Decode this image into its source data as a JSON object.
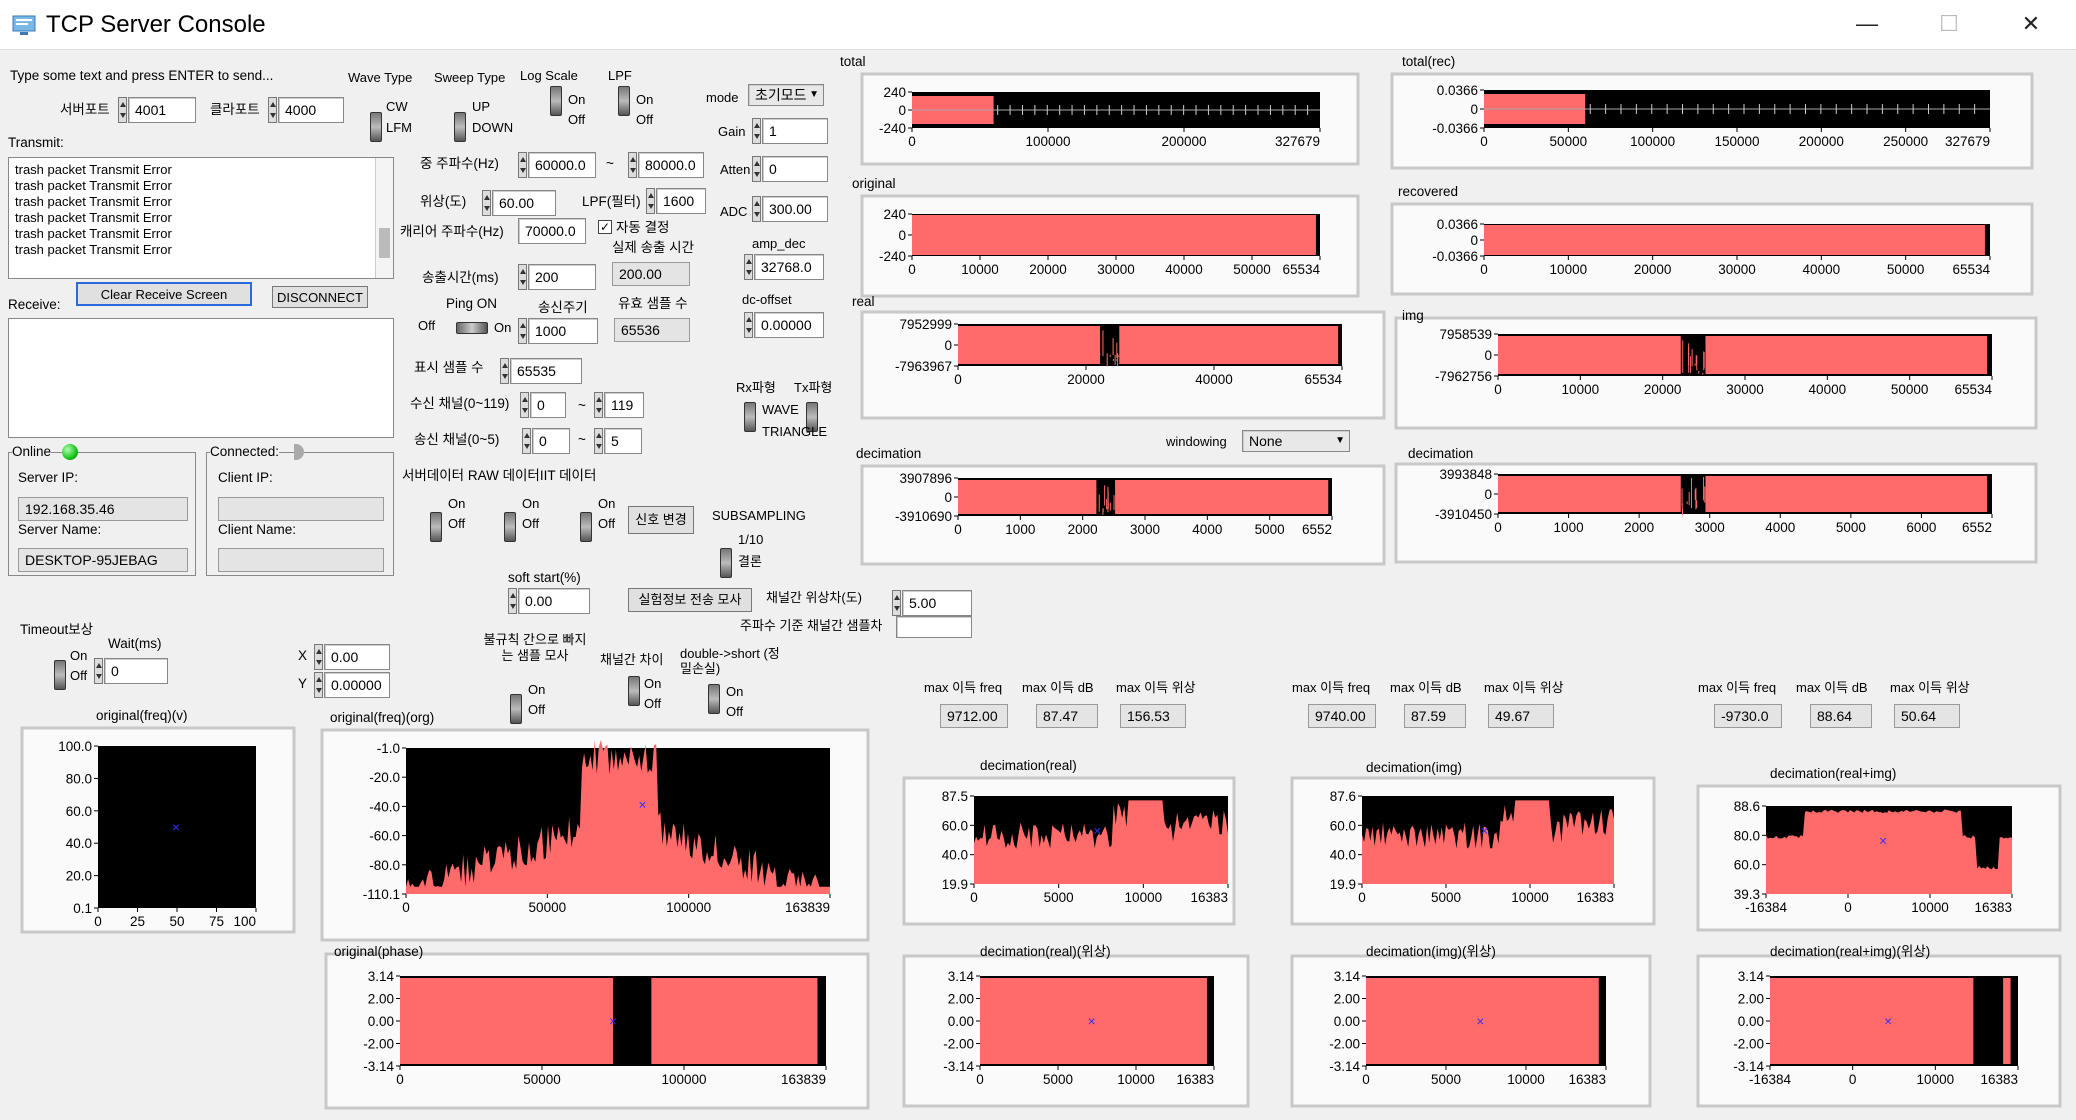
{
  "window": {
    "title": "TCP Server Console",
    "minimize": "—",
    "maximize": "☐",
    "close": "✕"
  },
  "left": {
    "type_hint": "Type some text and press ENTER to send...",
    "port_server_label": "서버포트",
    "port_server": "4001",
    "port_client_label": "클라포트",
    "port_client": "4000",
    "transmit_label": "Transmit:",
    "transmit_lines": [
      "trash packet Transmit Error",
      "trash packet Transmit Error",
      "trash packet Transmit Error",
      "trash packet Transmit Error",
      "trash packet Transmit Error",
      "trash packet Transmit Error"
    ],
    "clear_button": "Clear Receive Screen",
    "disconnect_button": "DISCONNECT",
    "receive_label": "Receive:",
    "online_label": "Online",
    "connected_label": "Connected:",
    "server_ip_label": "Server IP:",
    "server_ip": "192.168.35.46",
    "server_name_label": "Server Name:",
    "server_name": "DESKTOP-95JEBAG",
    "client_ip_label": "Client IP:",
    "client_name_label": "Client Name:",
    "timeout_label": "Timeout보상",
    "wait_label": "Wait(ms)",
    "wait_value": "0",
    "toggle_on": "On",
    "toggle_off": "Off"
  },
  "mid": {
    "wave_type": "Wave Type",
    "wave_cw": "CW",
    "wave_lfm": "LFM",
    "sweep_type": "Sweep Type",
    "sweep_up": "UP",
    "sweep_down": "DOWN",
    "log_scale": "Log Scale",
    "lpf": "LPF",
    "center_freq_label": "중 주파수(Hz)",
    "freq_low": "60000.0",
    "tilde": "~",
    "freq_high": "80000.0",
    "phase_label": "위상(도)",
    "phase": "60.00",
    "lpf_label": "LPF(필터)",
    "lpf_value": "1600",
    "carrier_label": "캐리어 주파수(Hz)",
    "carrier": "70000.0",
    "auto_label": "자동 결정",
    "real_time_label": "실제 송출 시간",
    "emit_label": "송출시간(ms)",
    "emit": "200",
    "real_emit": "200.00",
    "ping_label": "Ping ON",
    "period_label": "송신주기",
    "period": "1000",
    "valid_label": "유효 샘플 수",
    "valid": "65536",
    "display_label": "표시 샘플 수",
    "display": "65535",
    "rx_ch_label": "수신 채널(0~119)",
    "rx_ch_a": "0",
    "rx_ch_b": "119",
    "tx_ch_label": "송신 채널(0~5)",
    "tx_ch_a": "0",
    "tx_ch_b": "5",
    "data_label": "서버데이터 RAW 데이터IIT 데이터",
    "signal_btn": "신호 변경",
    "soft_start_label": "soft start(%)",
    "soft_start": "0.00",
    "xy_x_label": "X",
    "xy_x": "0.00",
    "xy_y_label": "Y",
    "xy_y": "0.00000",
    "irregular_label": "불규칙 간으로 빠지는 샘플 모사",
    "ch_diff_label": "채널간 차이",
    "dbl_short_label": "double->short (정밀손실)",
    "mode_label": "mode",
    "mode_value": "초기모드",
    "gain_label": "Gain",
    "gain": "1",
    "atten_label": "Atten",
    "atten": "0",
    "adc_label": "ADC",
    "adc": "300.00",
    "amp_label": "amp_dec",
    "amp": "32768.0",
    "dc_label": "dc-offset",
    "dc": "0.00000",
    "rx_wave_label": "Rx파형",
    "tx_wave_label": "Tx파형",
    "wave_label": "WAVE",
    "triangle_label": "TRIANGLE",
    "subsampling_label": "SUBSAMPLING",
    "subsampling_ratio": "1/10",
    "subsampling_result": "결론",
    "sim_btn": "실험정보 전송 모사",
    "ch_phase_label": "채널간 위상차(도)",
    "ch_phase": "5.00",
    "freq_ch_label": "주파수 기준 채널간 샘플차",
    "windowing_label": "windowing",
    "windowing_value": "None"
  },
  "max_groups": [
    {
      "freq_label": "max 이득 freq",
      "db_label": "max 이득 dB",
      "phase_label": "max 이득 위상",
      "freq": "9712.00",
      "db": "87.47",
      "phase": "156.53"
    },
    {
      "freq_label": "max 이득 freq",
      "db_label": "max 이득 dB",
      "phase_label": "max 이득 위상",
      "freq": "9740.00",
      "db": "87.59",
      "phase": "49.67"
    },
    {
      "freq_label": "max 이득 freq",
      "db_label": "max 이득 dB",
      "phase_label": "max 이득 위상",
      "freq": "-9730.0",
      "db": "88.64",
      "phase": "50.64"
    }
  ],
  "colors": {
    "trace": "#ff6b6b",
    "plot_bg": "#000000",
    "cursor": "#3030ff"
  },
  "chart_data": [
    {
      "title": "total",
      "type": "area",
      "yticks": [
        "240",
        "0",
        "-240"
      ],
      "xticks": [
        "0",
        "100000",
        "200000",
        "327679"
      ]
    },
    {
      "title": "original",
      "type": "area",
      "yticks": [
        "240",
        "0",
        "-240"
      ],
      "xticks": [
        "0",
        "10000",
        "20000",
        "30000",
        "40000",
        "50000",
        "65534"
      ]
    },
    {
      "title": "real",
      "type": "area",
      "yticks": [
        "7952999",
        "0",
        "-7963967"
      ],
      "xticks": [
        "0",
        "20000",
        "40000",
        "65534"
      ]
    },
    {
      "title": "decimation",
      "type": "area",
      "yticks": [
        "3907896",
        "0",
        "-3910690"
      ],
      "xticks": [
        "0",
        "1000",
        "2000",
        "3000",
        "4000",
        "5000",
        "6552"
      ]
    },
    {
      "title": "total(rec)",
      "type": "area",
      "yticks": [
        "0.0366",
        "0",
        "-0.0366"
      ],
      "xticks": [
        "0",
        "50000",
        "100000",
        "150000",
        "200000",
        "250000",
        "327679"
      ]
    },
    {
      "title": "recovered",
      "type": "area",
      "yticks": [
        "0.0366",
        "0",
        "-0.0366"
      ],
      "xticks": [
        "0",
        "10000",
        "20000",
        "30000",
        "40000",
        "50000",
        "65534"
      ]
    },
    {
      "title": "img",
      "type": "area",
      "yticks": [
        "7958539",
        "0",
        "-7962756"
      ],
      "xticks": [
        "0",
        "10000",
        "20000",
        "30000",
        "40000",
        "50000",
        "65534"
      ]
    },
    {
      "title": "decimation",
      "type": "area",
      "yticks": [
        "3993848",
        "0",
        "-3910450"
      ],
      "xticks": [
        "0",
        "1000",
        "2000",
        "3000",
        "4000",
        "5000",
        "6000",
        "6552"
      ]
    },
    {
      "title": "original(freq)(v)",
      "type": "scatter",
      "yticks": [
        "100.0",
        "80.0",
        "60.0",
        "40.0",
        "20.0",
        "0.1"
      ],
      "xticks": [
        "0",
        "25",
        "50",
        "75",
        "100"
      ],
      "points": [
        {
          "x": 50,
          "y": 50
        }
      ]
    },
    {
      "title": "original(freq)(org)",
      "type": "line",
      "yticks": [
        "-1.0",
        "-20.0",
        "-40.0",
        "-60.0",
        "-80.0",
        "-110.1"
      ],
      "xticks": [
        "0",
        "50000",
        "100000",
        "163839"
      ]
    },
    {
      "title": "original(phase)",
      "type": "area",
      "yticks": [
        "3.14",
        "2.00",
        "0.00",
        "-2.00",
        "-3.14"
      ],
      "xticks": [
        "0",
        "50000",
        "100000",
        "163839"
      ]
    },
    {
      "title": "decimation(real)",
      "type": "line",
      "yticks": [
        "87.5",
        "60.0",
        "40.0",
        "19.9"
      ],
      "xticks": [
        "0",
        "5000",
        "10000",
        "16383"
      ]
    },
    {
      "title": "decimation(img)",
      "type": "line",
      "yticks": [
        "87.6",
        "60.0",
        "40.0",
        "19.9"
      ],
      "xticks": [
        "0",
        "5000",
        "10000",
        "16383"
      ]
    },
    {
      "title": "decimation(real+img)",
      "type": "line",
      "yticks": [
        "88.6",
        "80.0",
        "60.0",
        "39.3"
      ],
      "xticks": [
        "-16384",
        "0",
        "10000",
        "16383"
      ]
    },
    {
      "title": "decimation(real)(위상)",
      "type": "area",
      "yticks": [
        "3.14",
        "2.00",
        "0.00",
        "-2.00",
        "-3.14"
      ],
      "xticks": [
        "0",
        "5000",
        "10000",
        "16383"
      ]
    },
    {
      "title": "decimation(img)(위상)",
      "type": "area",
      "yticks": [
        "3.14",
        "2.00",
        "0.00",
        "-2.00",
        "-3.14"
      ],
      "xticks": [
        "0",
        "5000",
        "10000",
        "16383"
      ]
    },
    {
      "title": "decimation(real+img)(위상)",
      "type": "area",
      "yticks": [
        "3.14",
        "2.00",
        "0.00",
        "-2.00",
        "-3.14"
      ],
      "xticks": [
        "-16384",
        "0",
        "10000",
        "16383"
      ]
    }
  ]
}
